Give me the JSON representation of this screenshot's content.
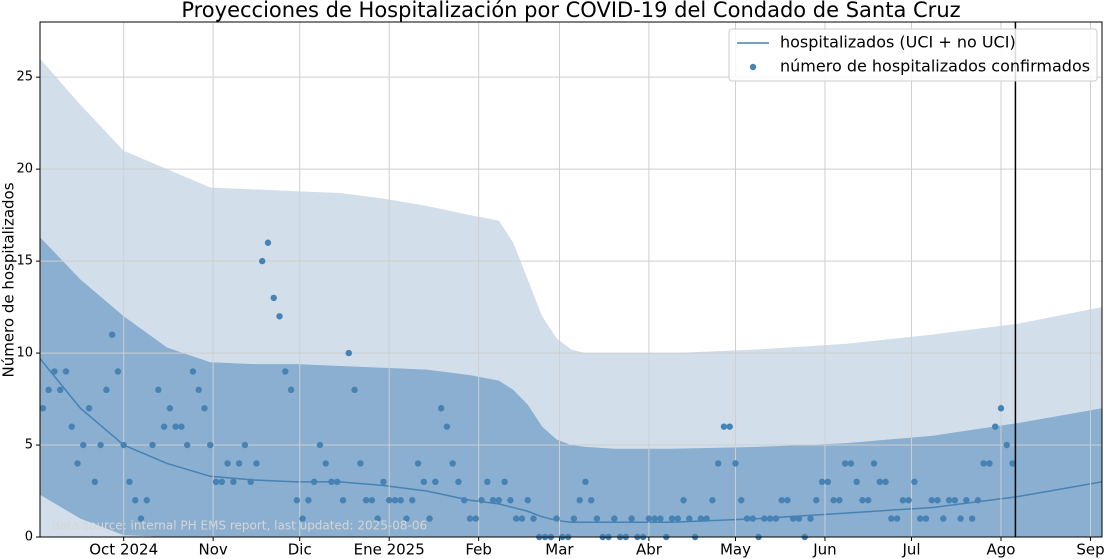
{
  "chart_data": {
    "type": "line",
    "title": "Proyecciones de Hospitalización por COVID-19 del Condado de Santa Cruz",
    "y_label": "Número de hospitalizados",
    "annotation": "data source: internal PH EMS report, last updated: 2025-08-06",
    "xlim": [
      -29,
      339
    ],
    "ylim": [
      0,
      28
    ],
    "xticks": [
      {
        "value": 0,
        "label": "Oct 2024"
      },
      {
        "value": 31,
        "label": "Nov"
      },
      {
        "value": 61,
        "label": "Dic"
      },
      {
        "value": 92,
        "label": "Ene 2025"
      },
      {
        "value": 123,
        "label": "Feb"
      },
      {
        "value": 151,
        "label": "Mar"
      },
      {
        "value": 182,
        "label": "Abr"
      },
      {
        "value": 212,
        "label": "May"
      },
      {
        "value": 243,
        "label": "Jun"
      },
      {
        "value": 273,
        "label": "Jul"
      },
      {
        "value": 304,
        "label": "Ago"
      },
      {
        "value": 335,
        "label": "Sep"
      }
    ],
    "yticks": [
      0,
      5,
      10,
      15,
      20,
      25
    ],
    "grid": true,
    "legend": "upper right",
    "today_x": 309,
    "bands": [
      {
        "color": "#d2dfeb",
        "x": [
          -29,
          -15,
          0,
          15,
          30,
          45,
          60,
          75,
          90,
          105,
          120,
          130,
          135,
          140,
          145,
          150,
          155,
          160,
          170,
          190,
          220,
          250,
          280,
          310,
          339
        ],
        "upper": [
          26,
          23.5,
          21,
          20,
          19,
          18.9,
          18.8,
          18.7,
          18.4,
          18,
          17.5,
          17.2,
          16,
          14,
          12,
          10.8,
          10.2,
          10,
          10,
          10,
          10.2,
          10.5,
          11,
          11.6,
          12.5
        ],
        "lower": [
          0,
          0,
          0,
          0,
          0,
          0,
          0,
          0,
          0,
          0,
          0,
          0,
          0,
          0,
          0,
          0,
          0,
          0,
          0,
          0,
          0,
          0,
          0,
          0,
          0
        ]
      },
      {
        "color": "#8aafd0",
        "x": [
          -29,
          -15,
          0,
          15,
          30,
          45,
          60,
          75,
          90,
          105,
          120,
          130,
          135,
          140,
          145,
          150,
          155,
          160,
          170,
          190,
          220,
          250,
          280,
          310,
          339
        ],
        "upper": [
          16.3,
          14,
          12,
          10.3,
          9.5,
          9.4,
          9.4,
          9.3,
          9.2,
          9.1,
          8.8,
          8.5,
          8,
          7.2,
          6,
          5.3,
          5,
          4.9,
          4.8,
          4.8,
          4.9,
          5.1,
          5.5,
          6.2,
          7
        ],
        "lower": [
          2.3,
          1,
          0.1,
          0,
          0,
          0,
          0,
          0,
          0,
          0,
          0,
          0,
          0,
          0,
          0,
          0,
          0,
          0,
          0,
          0,
          0,
          0,
          0,
          0,
          0
        ]
      }
    ],
    "series": [
      {
        "name": "hospitalizados (UCI + no UCI)",
        "type": "line",
        "color": "#4682b4",
        "x": [
          -29,
          -15,
          0,
          15,
          30,
          45,
          60,
          75,
          90,
          105,
          120,
          130,
          135,
          140,
          145,
          150,
          155,
          160,
          170,
          190,
          220,
          250,
          280,
          310,
          339
        ],
        "values": [
          9.7,
          7,
          5,
          4,
          3.3,
          3.1,
          3,
          3,
          2.8,
          2.5,
          2,
          1.8,
          1.6,
          1.4,
          1.1,
          0.9,
          0.8,
          0.8,
          0.8,
          0.8,
          1,
          1.3,
          1.6,
          2.2,
          3
        ]
      },
      {
        "name": "número de hospitalizados confirmados",
        "type": "scatter",
        "color": "#4682b4",
        "x": [
          -28,
          -26,
          -24,
          -22,
          -20,
          -18,
          -16,
          -14,
          -12,
          -10,
          -8,
          -6,
          -4,
          -2,
          0,
          2,
          4,
          6,
          8,
          10,
          12,
          14,
          16,
          18,
          20,
          22,
          24,
          26,
          28,
          30,
          32,
          34,
          36,
          38,
          40,
          42,
          44,
          46,
          48,
          50,
          52,
          54,
          56,
          58,
          60,
          62,
          64,
          66,
          68,
          70,
          72,
          74,
          76,
          78,
          80,
          82,
          84,
          86,
          88,
          90,
          92,
          94,
          96,
          98,
          100,
          102,
          104,
          106,
          108,
          110,
          112,
          114,
          116,
          118,
          120,
          122,
          124,
          126,
          128,
          130,
          132,
          134,
          136,
          138,
          140,
          142,
          144,
          146,
          148,
          150,
          152,
          154,
          156,
          158,
          160,
          162,
          164,
          166,
          168,
          170,
          172,
          174,
          176,
          178,
          180,
          182,
          184,
          186,
          188,
          190,
          192,
          194,
          196,
          198,
          200,
          202,
          204,
          206,
          208,
          210,
          212,
          214,
          216,
          218,
          220,
          222,
          224,
          226,
          228,
          230,
          232,
          234,
          236,
          238,
          240,
          242,
          244,
          246,
          248,
          250,
          252,
          254,
          256,
          258,
          260,
          262,
          264,
          266,
          268,
          270,
          272,
          274,
          276,
          278,
          280,
          282,
          284,
          286,
          288,
          290,
          292,
          294,
          296,
          298,
          300,
          302,
          304,
          306,
          308
        ],
        "values": [
          7,
          8,
          9,
          8,
          9,
          6,
          4,
          5,
          7,
          3,
          5,
          8,
          11,
          9,
          5,
          3,
          2,
          1,
          2,
          5,
          8,
          6,
          7,
          6,
          6,
          5,
          9,
          8,
          7,
          5,
          3,
          3,
          4,
          3,
          4,
          5,
          3,
          4,
          15,
          16,
          13,
          12,
          9,
          8,
          2,
          1,
          2,
          3,
          5,
          4,
          3,
          3,
          2,
          10,
          8,
          4,
          2,
          2,
          1,
          3,
          2,
          2,
          2,
          1,
          2,
          4,
          3,
          1,
          3,
          7,
          6,
          4,
          3,
          2,
          1,
          1,
          2,
          3,
          2,
          2,
          3,
          2,
          1,
          1,
          2,
          1,
          0,
          0,
          0,
          1,
          0,
          0,
          1,
          2,
          3,
          2,
          1,
          0,
          0,
          1,
          0,
          0,
          1,
          0,
          0,
          1,
          1,
          1,
          0,
          1,
          1,
          2,
          1,
          0,
          1,
          1,
          2,
          4,
          6,
          6,
          4,
          2,
          1,
          1,
          0,
          1,
          1,
          1,
          2,
          2,
          1,
          1,
          0,
          1,
          2,
          3,
          3,
          2,
          2,
          4,
          4,
          3,
          2,
          2,
          4,
          3,
          3,
          1,
          1,
          2,
          2,
          3,
          1,
          1,
          2,
          2,
          1,
          2,
          2,
          1,
          2,
          1,
          2,
          4,
          4,
          6,
          7,
          5,
          4
        ]
      }
    ]
  }
}
